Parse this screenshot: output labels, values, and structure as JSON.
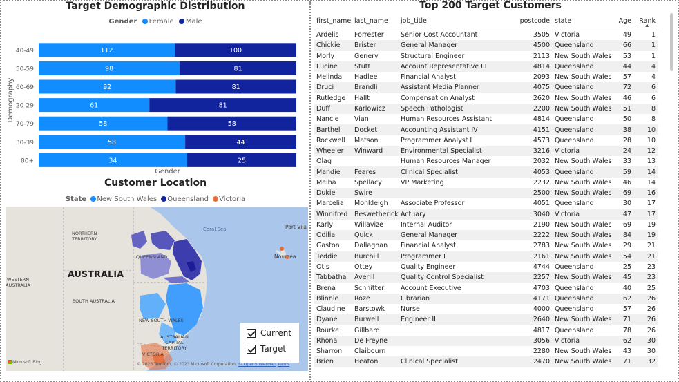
{
  "colors": {
    "female": "#118dff",
    "male": "#12239e",
    "nsw": "#118dff",
    "queensland": "#12239e",
    "victoria": "#e66c37"
  },
  "bar_chart": {
    "title": "Target Demographic Distribution",
    "legend_title": "Gender",
    "legend_female": "Female",
    "legend_male": "Male",
    "ylabel": "Demography",
    "xlabel": "Gender"
  },
  "chart_data": {
    "type": "bar",
    "orientation": "horizontal",
    "stacking": "100%",
    "title": "Target Demographic Distribution",
    "xlabel": "Gender",
    "ylabel": "Demography",
    "categories": [
      "40-49",
      "50-59",
      "60-69",
      "20-29",
      "70-79",
      "30-39",
      "80+"
    ],
    "series": [
      {
        "name": "Female",
        "color": "#118dff",
        "values": [
          112,
          98,
          92,
          61,
          58,
          58,
          34
        ]
      },
      {
        "name": "Male",
        "color": "#12239e",
        "values": [
          100,
          81,
          81,
          81,
          58,
          44,
          25
        ]
      }
    ],
    "legend": "top-center",
    "grid": false
  },
  "map": {
    "title": "Customer Location",
    "legend_title": "State",
    "legend_items": [
      "New South Wales",
      "Queensland",
      "Victoria"
    ],
    "labels": {
      "northern_territory": "NORTHERN\nTERRITORY",
      "queensland": "QUEENSLAND",
      "western_australia": "WESTERN\nAUSTRALIA",
      "south_australia": "SOUTH AUSTRALIA",
      "new_south_wales": "NEW SOUTH WALES",
      "act": "AUSTRALIAN\nCAPITAL\nTERRITORY",
      "victoria": "VICTORIA",
      "australia": "AUSTRALIA",
      "coral_sea": "Coral Sea",
      "port_vila": "Port Vila",
      "noumea": "Nouméa"
    },
    "copyright": "© 2023 TomTom, © 2023 Microsoft Corporation,",
    "copyright_link": "© OpenStreetMap",
    "terms": "Terms",
    "bing": "Microsoft Bing",
    "toggle_current": "Current",
    "toggle_target": "Target"
  },
  "table": {
    "title": "Top 200 Target Customers",
    "columns": [
      "first_name",
      "last_name",
      "job_title",
      "postcode",
      "state",
      "Age",
      "Rank"
    ],
    "rows": [
      [
        "Ardelis",
        "Forrester",
        "Senior Cost Accountant",
        "3505",
        "Victoria",
        "49",
        "1"
      ],
      [
        "Chickie",
        "Brister",
        "General Manager",
        "4500",
        "Queensland",
        "66",
        "1"
      ],
      [
        "Morly",
        "Genery",
        "Structural Engineer",
        "2113",
        "New South Wales",
        "53",
        "1"
      ],
      [
        "Lucine",
        "Stutt",
        "Account Representative III",
        "4814",
        "Queensland",
        "44",
        "4"
      ],
      [
        "Melinda",
        "Hadlee",
        "Financial Analyst",
        "2093",
        "New South Wales",
        "57",
        "4"
      ],
      [
        "Druci",
        "Brandli",
        "Assistant Media Planner",
        "4075",
        "Queensland",
        "72",
        "6"
      ],
      [
        "Rutledge",
        "Hallt",
        "Compensation Analyst",
        "2620",
        "New South Wales",
        "46",
        "6"
      ],
      [
        "Duff",
        "Karlowicz",
        "Speech Pathologist",
        "2200",
        "New South Wales",
        "51",
        "8"
      ],
      [
        "Nancie",
        "Vian",
        "Human Resources Assistant II",
        "4814",
        "Queensland",
        "50",
        "8"
      ],
      [
        "Barthel",
        "Docket",
        "Accounting Assistant IV",
        "4151",
        "Queensland",
        "38",
        "10"
      ],
      [
        "Rockwell",
        "Matson",
        "Programmer Analyst I",
        "4573",
        "Queensland",
        "28",
        "10"
      ],
      [
        "Wheeler",
        "Winward",
        "Environmental Specialist",
        "3216",
        "Victoria",
        "24",
        "12"
      ],
      [
        "Olag",
        "",
        "Human Resources Manager",
        "2032",
        "New South Wales",
        "33",
        "13"
      ],
      [
        "Mandie",
        "Feares",
        "Clinical Specialist",
        "4053",
        "Queensland",
        "59",
        "14"
      ],
      [
        "Melba",
        "Spellacy",
        "VP Marketing",
        "2232",
        "New South Wales",
        "46",
        "14"
      ],
      [
        "Dukie",
        "Swire",
        "",
        "2500",
        "New South Wales",
        "69",
        "16"
      ],
      [
        "Marcelia",
        "Monkleigh",
        "Associate Professor",
        "4051",
        "Queensland",
        "30",
        "17"
      ],
      [
        "Winnifred",
        "Beswetherick",
        "Actuary",
        "3040",
        "Victoria",
        "47",
        "17"
      ],
      [
        "Karly",
        "Willavize",
        "Internal Auditor",
        "2190",
        "New South Wales",
        "69",
        "19"
      ],
      [
        "Odilia",
        "Quick",
        "General Manager",
        "2222",
        "New South Wales",
        "84",
        "19"
      ],
      [
        "Gaston",
        "Dallaghan",
        "Financial Analyst",
        "2783",
        "New South Wales",
        "29",
        "21"
      ],
      [
        "Teddie",
        "Burchill",
        "Programmer I",
        "2161",
        "New South Wales",
        "54",
        "21"
      ],
      [
        "Otis",
        "Ottey",
        "Quality Engineer",
        "4744",
        "Queensland",
        "25",
        "23"
      ],
      [
        "Tabbatha",
        "Averill",
        "Quality Control Specialist",
        "2257",
        "New South Wales",
        "45",
        "23"
      ],
      [
        "Brena",
        "Schnitter",
        "Account Executive",
        "4703",
        "Queensland",
        "40",
        "25"
      ],
      [
        "Blinnie",
        "Roze",
        "Librarian",
        "4171",
        "Queensland",
        "62",
        "26"
      ],
      [
        "Claudine",
        "Barstowk",
        "Nurse",
        "4000",
        "Queensland",
        "57",
        "26"
      ],
      [
        "Dyane",
        "Burwell",
        "Engineer II",
        "2640",
        "New South Wales",
        "71",
        "26"
      ],
      [
        "Rourke",
        "Gillbard",
        "",
        "4817",
        "Queensland",
        "78",
        "26"
      ],
      [
        "Rhona",
        "De Freyne",
        "",
        "3056",
        "Victoria",
        "62",
        "30"
      ],
      [
        "Sharron",
        "Claibourn",
        "",
        "2280",
        "New South Wales",
        "43",
        "30"
      ],
      [
        "Brien",
        "Heaton",
        "Clinical Specialist",
        "2470",
        "New South Wales",
        "71",
        "32"
      ]
    ]
  }
}
